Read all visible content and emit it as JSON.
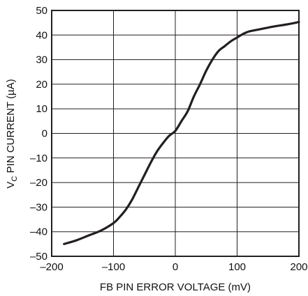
{
  "chart_data": {
    "type": "line",
    "title": "",
    "xlabel": "FB PIN ERROR VOLTAGE (mV)",
    "ylabel": {
      "prefix": "V",
      "subscript": "C",
      "suffix": " PIN CURRENT (µA)"
    },
    "xlim": [
      -200,
      200
    ],
    "ylim": [
      -50,
      50
    ],
    "xticks": [
      -200,
      -100,
      0,
      100,
      200
    ],
    "xtick_labels": [
      "–200",
      "–100",
      "0",
      "100",
      "200"
    ],
    "yticks": [
      50,
      40,
      30,
      20,
      10,
      0,
      -10,
      -20,
      -30,
      -40,
      -50
    ],
    "ytick_labels": [
      "50",
      "40",
      "30",
      "20",
      "10",
      "0",
      "–10",
      "–20",
      "–30",
      "–40",
      "–50"
    ],
    "grid": true,
    "line_color": "#231f20",
    "series": [
      {
        "x": [
          -180,
          -160,
          -140,
          -120,
          -100,
          -90,
          -80,
          -70,
          -60,
          -50,
          -40,
          -30,
          -20,
          -10,
          0,
          10,
          20,
          30,
          40,
          50,
          60,
          70,
          80,
          90,
          100,
          110,
          120,
          140,
          160,
          180,
          200
        ],
        "y": [
          -45,
          -43.5,
          -41.5,
          -39.5,
          -36.5,
          -34,
          -31,
          -27,
          -22,
          -17,
          -12,
          -7.5,
          -4,
          -1,
          1,
          5,
          9,
          15,
          20,
          25.5,
          30,
          33.5,
          35.5,
          37.5,
          39,
          40.5,
          41.5,
          42.5,
          43.5,
          44.3,
          45.3
        ]
      }
    ]
  }
}
